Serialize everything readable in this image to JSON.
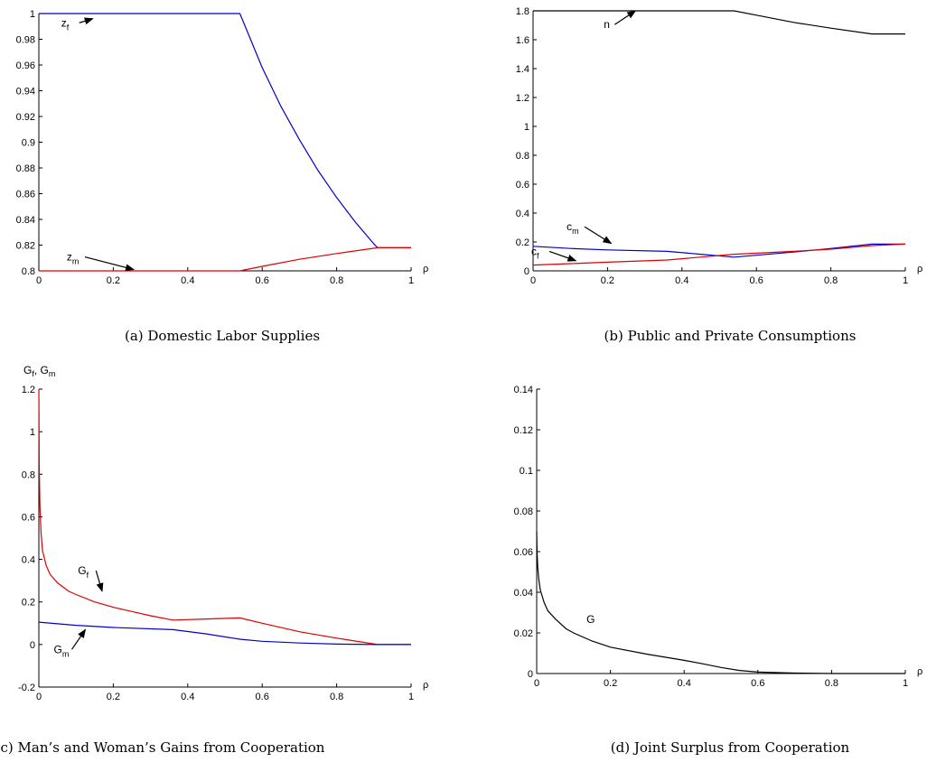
{
  "chart_data": [
    {
      "type": "line",
      "caption": "(a) Domestic Labor Supplies",
      "xlabel": "ρ",
      "xlim": [
        0,
        1
      ],
      "ylim": [
        0.8,
        1
      ],
      "xticks": [
        0,
        0.2,
        0.4,
        0.6,
        0.8,
        1
      ],
      "yticks": [
        0.8,
        0.82,
        0.84,
        0.86,
        0.88,
        0.9,
        0.92,
        0.94,
        0.96,
        0.98,
        1
      ],
      "series": [
        {
          "label": "z",
          "label_sub": "f",
          "color": "#0000cc",
          "x": [
            0,
            0.54,
            0.6,
            0.65,
            0.7,
            0.75,
            0.8,
            0.85,
            0.9,
            0.91,
            1.0
          ],
          "y": [
            1.0,
            1.0,
            0.958,
            0.928,
            0.902,
            0.878,
            0.857,
            0.838,
            0.821,
            0.818,
            0.818
          ]
        },
        {
          "label": "z",
          "label_sub": "m",
          "color": "#dd0000",
          "x": [
            0,
            0.54,
            0.6,
            0.7,
            0.8,
            0.91,
            1.0
          ],
          "y": [
            0.8,
            0.8,
            0.8035,
            0.809,
            0.8135,
            0.818,
            0.818
          ]
        }
      ],
      "annotations": [
        {
          "text": "z",
          "sub": "f",
          "tx": 0.06,
          "ty": 0.99,
          "ax": 0.145,
          "ay": 0.996
        },
        {
          "text": "z",
          "sub": "m",
          "tx": 0.075,
          "ty": 0.808,
          "ax": 0.255,
          "ay": 0.801
        }
      ]
    },
    {
      "type": "line",
      "caption": "(b) Public and Private Consumptions",
      "xlabel": "ρ",
      "xlim": [
        0,
        1
      ],
      "ylim": [
        0,
        1.8
      ],
      "xticks": [
        0,
        0.2,
        0.4,
        0.6,
        0.8,
        1
      ],
      "yticks": [
        0,
        0.2,
        0.4,
        0.6,
        0.8,
        1,
        1.2,
        1.4,
        1.6,
        1.8
      ],
      "series": [
        {
          "label": "n",
          "label_sub": "",
          "color": "#000000",
          "x": [
            0,
            0.54,
            0.6,
            0.7,
            0.8,
            0.91,
            1.0
          ],
          "y": [
            1.8,
            1.8,
            1.77,
            1.72,
            1.68,
            1.64,
            1.64
          ]
        },
        {
          "label": "c",
          "label_sub": "m",
          "color": "#0000cc",
          "x": [
            0,
            0.1,
            0.2,
            0.36,
            0.45,
            0.54,
            0.7,
            0.8,
            0.91,
            1.0
          ],
          "y": [
            0.17,
            0.155,
            0.145,
            0.135,
            0.115,
            0.095,
            0.13,
            0.155,
            0.185,
            0.185
          ]
        },
        {
          "label": "c",
          "label_sub": "f",
          "color": "#dd0000",
          "x": [
            0,
            0.1,
            0.2,
            0.36,
            0.45,
            0.54,
            0.7,
            0.8,
            0.91,
            1.0
          ],
          "y": [
            0.04,
            0.05,
            0.06,
            0.075,
            0.095,
            0.115,
            0.135,
            0.15,
            0.175,
            0.185
          ]
        }
      ],
      "annotations": [
        {
          "text": "n",
          "sub": "",
          "tx": 0.19,
          "ty": 1.68,
          "ax": 0.275,
          "ay": 1.8
        },
        {
          "text": "c",
          "sub": "m",
          "tx": 0.09,
          "ty": 0.28,
          "ax": 0.21,
          "ay": 0.19
        },
        {
          "text": "c",
          "sub": "f",
          "tx": -0.005,
          "ty": 0.11,
          "ax": 0.115,
          "ay": 0.07
        }
      ]
    },
    {
      "type": "line",
      "caption": "c) Man’s and Woman’s Gains from Cooperation",
      "xlabel": "ρ",
      "ylabel": "G",
      "ylabel_sub": "f",
      "ylabel_sep": ", G",
      "ylabel_sub2": "m",
      "xlim": [
        0,
        1
      ],
      "ylim": [
        -0.2,
        1.2
      ],
      "xticks": [
        0,
        0.2,
        0.4,
        0.6,
        0.8,
        1
      ],
      "yticks": [
        -0.2,
        0,
        0.2,
        0.4,
        0.6,
        0.8,
        1,
        1.2
      ],
      "series": [
        {
          "label": "G",
          "label_sub": "f",
          "color": "#dd0000",
          "x": [
            0,
            0.001,
            0.003,
            0.006,
            0.01,
            0.02,
            0.03,
            0.05,
            0.08,
            0.1,
            0.15,
            0.2,
            0.25,
            0.3,
            0.36,
            0.45,
            0.54,
            0.6,
            0.7,
            0.8,
            0.91,
            1.0
          ],
          "y": [
            1.2,
            0.85,
            0.65,
            0.52,
            0.44,
            0.37,
            0.33,
            0.29,
            0.25,
            0.235,
            0.2,
            0.175,
            0.155,
            0.135,
            0.115,
            0.12,
            0.125,
            0.1,
            0.06,
            0.03,
            0.0,
            0.0
          ]
        },
        {
          "label": "G",
          "label_sub": "m",
          "color": "#0000cc",
          "x": [
            0,
            0.1,
            0.2,
            0.36,
            0.45,
            0.54,
            0.6,
            0.7,
            0.8,
            0.91,
            1.0
          ],
          "y": [
            0.105,
            0.09,
            0.08,
            0.07,
            0.05,
            0.025,
            0.015,
            0.007,
            0.002,
            0.0,
            0.0
          ]
        }
      ],
      "annotations": [
        {
          "text": "G",
          "sub": "f",
          "tx": 0.105,
          "ty": 0.33,
          "ax": 0.17,
          "ay": 0.25
        },
        {
          "text": "G",
          "sub": "m",
          "tx": 0.04,
          "ty": -0.04,
          "ax": 0.125,
          "ay": 0.07
        }
      ]
    },
    {
      "type": "line",
      "caption": "(d) Joint Surplus from Cooperation",
      "xlabel": "ρ",
      "xlim": [
        0,
        1
      ],
      "ylim": [
        0,
        0.14
      ],
      "xticks": [
        0,
        0.2,
        0.4,
        0.6,
        0.8,
        1
      ],
      "yticks": [
        0,
        0.02,
        0.04,
        0.06,
        0.08,
        0.1,
        0.12,
        0.14
      ],
      "series": [
        {
          "label": "G",
          "label_sub": "",
          "color": "#000000",
          "x": [
            0,
            0.001,
            0.003,
            0.006,
            0.01,
            0.02,
            0.03,
            0.05,
            0.08,
            0.1,
            0.15,
            0.2,
            0.3,
            0.4,
            0.45,
            0.5,
            0.55,
            0.6,
            0.7,
            0.8,
            0.91,
            1.0
          ],
          "y": [
            0.07,
            0.06,
            0.052,
            0.046,
            0.041,
            0.035,
            0.031,
            0.027,
            0.022,
            0.02,
            0.016,
            0.013,
            0.0095,
            0.0065,
            0.0048,
            0.003,
            0.0015,
            0.0007,
            0.0002,
            0.0,
            0.0,
            0.0
          ]
        }
      ],
      "annotations": [
        {
          "text": "G",
          "sub": "",
          "tx": 0.135,
          "ty": 0.025
        }
      ]
    }
  ]
}
